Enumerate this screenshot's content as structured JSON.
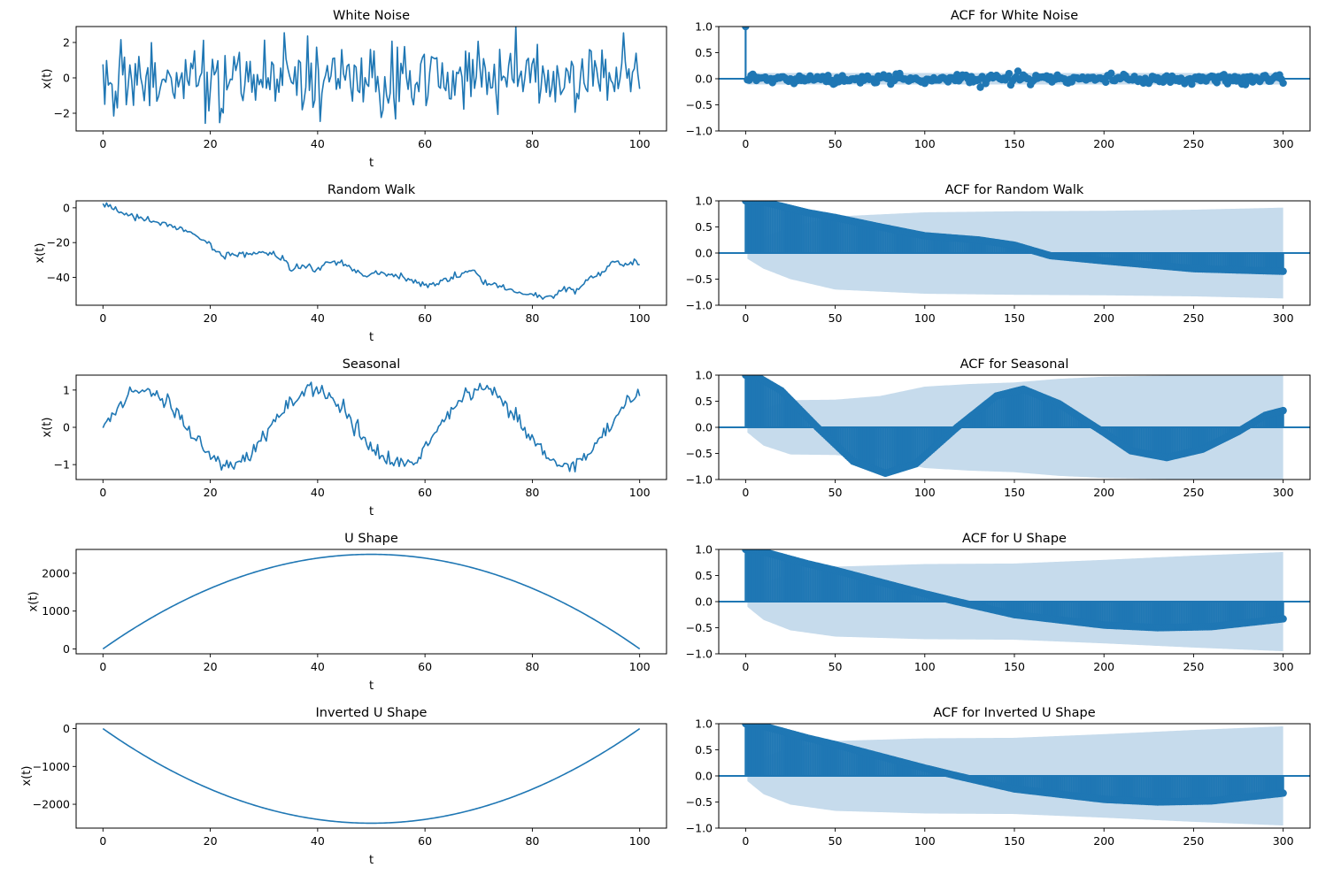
{
  "colors": {
    "line": "#1f77b4",
    "band": "#c6dbec",
    "axis": "#000000"
  },
  "chart_data": [
    {
      "type": "line",
      "title": "White Noise",
      "xlabel": "t",
      "ylabel": "x(t)",
      "xlim": [
        -5,
        105
      ],
      "ylim": [
        -3.0,
        2.9
      ],
      "xticks": [
        "0",
        "20",
        "40",
        "60",
        "80",
        "100"
      ],
      "xtick_values": [
        0,
        20,
        40,
        60,
        80,
        100
      ],
      "yticks": [
        "−2",
        "0",
        "2"
      ],
      "ytick_values": [
        -2,
        0,
        2
      ],
      "series": {
        "kind": "white_noise",
        "n": 300,
        "amplitude": 0.95,
        "seed": 7
      }
    },
    {
      "type": "line",
      "title": "Random Walk",
      "xlabel": "t",
      "ylabel": "x(t)",
      "xlim": [
        -5,
        105
      ],
      "ylim": [
        -56,
        4
      ],
      "xticks": [
        "0",
        "20",
        "40",
        "60",
        "80",
        "100"
      ],
      "xtick_values": [
        0,
        20,
        40,
        60,
        80,
        100
      ],
      "yticks": [
        "−40",
        "−20",
        "0"
      ],
      "ytick_values": [
        -40,
        -20,
        0
      ],
      "series": {
        "kind": "keypoints",
        "n": 300,
        "points": [
          [
            0,
            1
          ],
          [
            1,
            1.5
          ],
          [
            3,
            -3
          ],
          [
            5,
            -4
          ],
          [
            8,
            -7
          ],
          [
            12,
            -10
          ],
          [
            15,
            -12
          ],
          [
            18,
            -17
          ],
          [
            20,
            -21
          ],
          [
            22,
            -28
          ],
          [
            25,
            -27
          ],
          [
            28,
            -26
          ],
          [
            31,
            -26
          ],
          [
            34,
            -30
          ],
          [
            35,
            -36
          ],
          [
            37,
            -33
          ],
          [
            40,
            -35
          ],
          [
            42,
            -31
          ],
          [
            45,
            -32
          ],
          [
            48,
            -38
          ],
          [
            52,
            -38
          ],
          [
            55,
            -39
          ],
          [
            58,
            -42
          ],
          [
            60,
            -45
          ],
          [
            63,
            -42
          ],
          [
            66,
            -40
          ],
          [
            69,
            -35
          ],
          [
            71,
            -44
          ],
          [
            74,
            -45
          ],
          [
            77,
            -49
          ],
          [
            80,
            -50
          ],
          [
            82,
            -51
          ],
          [
            84,
            -52
          ],
          [
            86,
            -46
          ],
          [
            88,
            -48
          ],
          [
            90,
            -42
          ],
          [
            93,
            -37
          ],
          [
            95,
            -32
          ],
          [
            97,
            -33
          ],
          [
            99,
            -31
          ],
          [
            100,
            -32
          ]
        ],
        "noise": 0.9,
        "seed": 3
      }
    },
    {
      "type": "line",
      "title": "Seasonal",
      "xlabel": "t",
      "ylabel": "x(t)",
      "xlim": [
        -5,
        105
      ],
      "ylim": [
        -1.4,
        1.4
      ],
      "xticks": [
        "0",
        "20",
        "40",
        "60",
        "80",
        "100"
      ],
      "xtick_values": [
        0,
        20,
        40,
        60,
        80,
        100
      ],
      "yticks": [
        "−1",
        "0",
        "1"
      ],
      "ytick_values": [
        -1,
        0,
        1
      ],
      "series": {
        "kind": "sine",
        "n": 300,
        "period": 31.4,
        "amplitude": 1.0,
        "noise": 0.1,
        "seed": 11
      }
    },
    {
      "type": "line",
      "title": "U Shape",
      "xlabel": "t",
      "ylabel": "x(t)",
      "xlim": [
        -5,
        105
      ],
      "ylim": [
        -130,
        2630
      ],
      "xticks": [
        "0",
        "20",
        "40",
        "60",
        "80",
        "100"
      ],
      "xtick_values": [
        0,
        20,
        40,
        60,
        80,
        100
      ],
      "yticks": [
        "0",
        "1000",
        "2000"
      ],
      "ytick_values": [
        0,
        1000,
        2000
      ],
      "series": {
        "kind": "parabola",
        "n": 300,
        "peak": 2500
      }
    },
    {
      "type": "line",
      "title": "Inverted U Shape",
      "xlabel": "t",
      "ylabel": "x(t)",
      "xlim": [
        -5,
        105
      ],
      "ylim": [
        -2630,
        130
      ],
      "xticks": [
        "0",
        "20",
        "40",
        "60",
        "80",
        "100"
      ],
      "xtick_values": [
        0,
        20,
        40,
        60,
        80,
        100
      ],
      "yticks": [
        "−2000",
        "−1000",
        "0"
      ],
      "ytick_values": [
        -2000,
        -1000,
        0
      ],
      "series": {
        "kind": "parabola",
        "n": 300,
        "peak": -2500
      }
    },
    {
      "type": "bar",
      "title": "ACF for White Noise",
      "xlabel": "",
      "ylabel": "",
      "xlim": [
        -15,
        315
      ],
      "ylim": [
        -1.0,
        1.0
      ],
      "xticks": [
        "0",
        "50",
        "100",
        "150",
        "200",
        "250",
        "300"
      ],
      "xtick_values": [
        0,
        50,
        100,
        150,
        200,
        250,
        300
      ],
      "yticks": [
        "−1.0",
        "−0.5",
        "0.0",
        "0.5",
        "1.0"
      ],
      "ytick_values": [
        -1,
        -0.5,
        0,
        0.5,
        1
      ],
      "acf": {
        "kind": "noise",
        "nlags": 300,
        "amplitude": 0.045,
        "seed": 5
      },
      "confint": [
        [
          1,
          0.11
        ],
        [
          300,
          0.11
        ]
      ]
    },
    {
      "type": "bar",
      "title": "ACF for Random Walk",
      "xlabel": "",
      "ylabel": "",
      "xlim": [
        -15,
        315
      ],
      "ylim": [
        -1.0,
        1.0
      ],
      "xticks": [
        "0",
        "50",
        "100",
        "150",
        "200",
        "250",
        "300"
      ],
      "xtick_values": [
        0,
        50,
        100,
        150,
        200,
        250,
        300
      ],
      "yticks": [
        "−1.0",
        "−0.5",
        "0.0",
        "0.5",
        "1.0"
      ],
      "ytick_values": [
        -1,
        -0.5,
        0,
        0.5,
        1
      ],
      "acf": {
        "kind": "keypoints",
        "nlags": 300,
        "points": [
          [
            0,
            1.0
          ],
          [
            10,
            0.98
          ],
          [
            35,
            0.77
          ],
          [
            50,
            0.68
          ],
          [
            75,
            0.5
          ],
          [
            100,
            0.33
          ],
          [
            130,
            0.25
          ],
          [
            150,
            0.15
          ],
          [
            170,
            -0.05
          ],
          [
            200,
            -0.15
          ],
          [
            250,
            -0.3
          ],
          [
            300,
            -0.35
          ]
        ]
      },
      "confint": [
        [
          1,
          0.11
        ],
        [
          10,
          0.3
        ],
        [
          25,
          0.5
        ],
        [
          50,
          0.7
        ],
        [
          100,
          0.78
        ],
        [
          150,
          0.8
        ],
        [
          200,
          0.81
        ],
        [
          250,
          0.83
        ],
        [
          300,
          0.87
        ]
      ]
    },
    {
      "type": "bar",
      "title": "ACF for Seasonal",
      "xlabel": "",
      "ylabel": "",
      "xlim": [
        -15,
        315
      ],
      "ylim": [
        -1.0,
        1.0
      ],
      "xticks": [
        "0",
        "50",
        "100",
        "150",
        "200",
        "250",
        "300"
      ],
      "xtick_values": [
        0,
        50,
        100,
        150,
        200,
        250,
        300
      ],
      "yticks": [
        "−1.0",
        "−0.5",
        "0.0",
        "0.5",
        "1.0"
      ],
      "ytick_values": [
        -1,
        -0.5,
        0,
        0.5,
        1
      ],
      "acf": {
        "kind": "keypoints",
        "nlags": 300,
        "points": [
          [
            0,
            1.0
          ],
          [
            5,
            1.0
          ],
          [
            20,
            0.7
          ],
          [
            40,
            0.0
          ],
          [
            60,
            -0.65
          ],
          [
            78,
            -0.88
          ],
          [
            95,
            -0.7
          ],
          [
            118,
            0.0
          ],
          [
            140,
            0.6
          ],
          [
            155,
            0.73
          ],
          [
            175,
            0.45
          ],
          [
            200,
            -0.1
          ],
          [
            215,
            -0.45
          ],
          [
            235,
            -0.58
          ],
          [
            255,
            -0.42
          ],
          [
            275,
            -0.08
          ],
          [
            290,
            0.23
          ],
          [
            300,
            0.32
          ]
        ]
      },
      "confint": [
        [
          1,
          0.1
        ],
        [
          10,
          0.35
        ],
        [
          25,
          0.52
        ],
        [
          50,
          0.53
        ],
        [
          75,
          0.6
        ],
        [
          100,
          0.78
        ],
        [
          125,
          0.83
        ],
        [
          150,
          0.86
        ],
        [
          175,
          0.93
        ],
        [
          200,
          0.97
        ],
        [
          250,
          1.0
        ],
        [
          300,
          1.0
        ]
      ]
    },
    {
      "type": "bar",
      "title": "ACF for U Shape",
      "xlabel": "",
      "ylabel": "",
      "xlim": [
        -15,
        315
      ],
      "ylim": [
        -1.0,
        1.0
      ],
      "xticks": [
        "0",
        "50",
        "100",
        "150",
        "200",
        "250",
        "300"
      ],
      "xtick_values": [
        0,
        50,
        100,
        150,
        200,
        250,
        300
      ],
      "yticks": [
        "−1.0",
        "−0.5",
        "0.0",
        "0.5",
        "1.0"
      ],
      "ytick_values": [
        -1,
        -0.5,
        0,
        0.5,
        1
      ],
      "acf": {
        "kind": "keypoints",
        "nlags": 300,
        "points": [
          [
            0,
            1.0
          ],
          [
            5,
            1.0
          ],
          [
            35,
            0.72
          ],
          [
            50,
            0.6
          ],
          [
            100,
            0.15
          ],
          [
            118,
            0.0
          ],
          [
            150,
            -0.25
          ],
          [
            200,
            -0.45
          ],
          [
            230,
            -0.5
          ],
          [
            260,
            -0.48
          ],
          [
            300,
            -0.33
          ]
        ]
      },
      "confint": [
        [
          1,
          0.1
        ],
        [
          10,
          0.35
        ],
        [
          25,
          0.55
        ],
        [
          50,
          0.67
        ],
        [
          100,
          0.72
        ],
        [
          150,
          0.73
        ],
        [
          200,
          0.8
        ],
        [
          250,
          0.88
        ],
        [
          300,
          0.95
        ]
      ]
    },
    {
      "type": "bar",
      "title": "ACF for Inverted U Shape",
      "xlabel": "",
      "ylabel": "",
      "xlim": [
        -15,
        315
      ],
      "ylim": [
        -1.0,
        1.0
      ],
      "xticks": [
        "0",
        "50",
        "100",
        "150",
        "200",
        "250",
        "300"
      ],
      "xtick_values": [
        0,
        50,
        100,
        150,
        200,
        250,
        300
      ],
      "yticks": [
        "−1.0",
        "−0.5",
        "0.0",
        "0.5",
        "1.0"
      ],
      "ytick_values": [
        -1,
        -0.5,
        0,
        0.5,
        1
      ],
      "acf": {
        "kind": "keypoints",
        "nlags": 300,
        "points": [
          [
            0,
            1.0
          ],
          [
            5,
            1.0
          ],
          [
            35,
            0.72
          ],
          [
            50,
            0.6
          ],
          [
            100,
            0.15
          ],
          [
            118,
            0.0
          ],
          [
            150,
            -0.25
          ],
          [
            200,
            -0.45
          ],
          [
            230,
            -0.5
          ],
          [
            260,
            -0.48
          ],
          [
            300,
            -0.33
          ]
        ]
      },
      "confint": [
        [
          1,
          0.1
        ],
        [
          10,
          0.35
        ],
        [
          25,
          0.55
        ],
        [
          50,
          0.67
        ],
        [
          100,
          0.72
        ],
        [
          150,
          0.73
        ],
        [
          200,
          0.8
        ],
        [
          250,
          0.88
        ],
        [
          300,
          0.95
        ]
      ]
    }
  ]
}
